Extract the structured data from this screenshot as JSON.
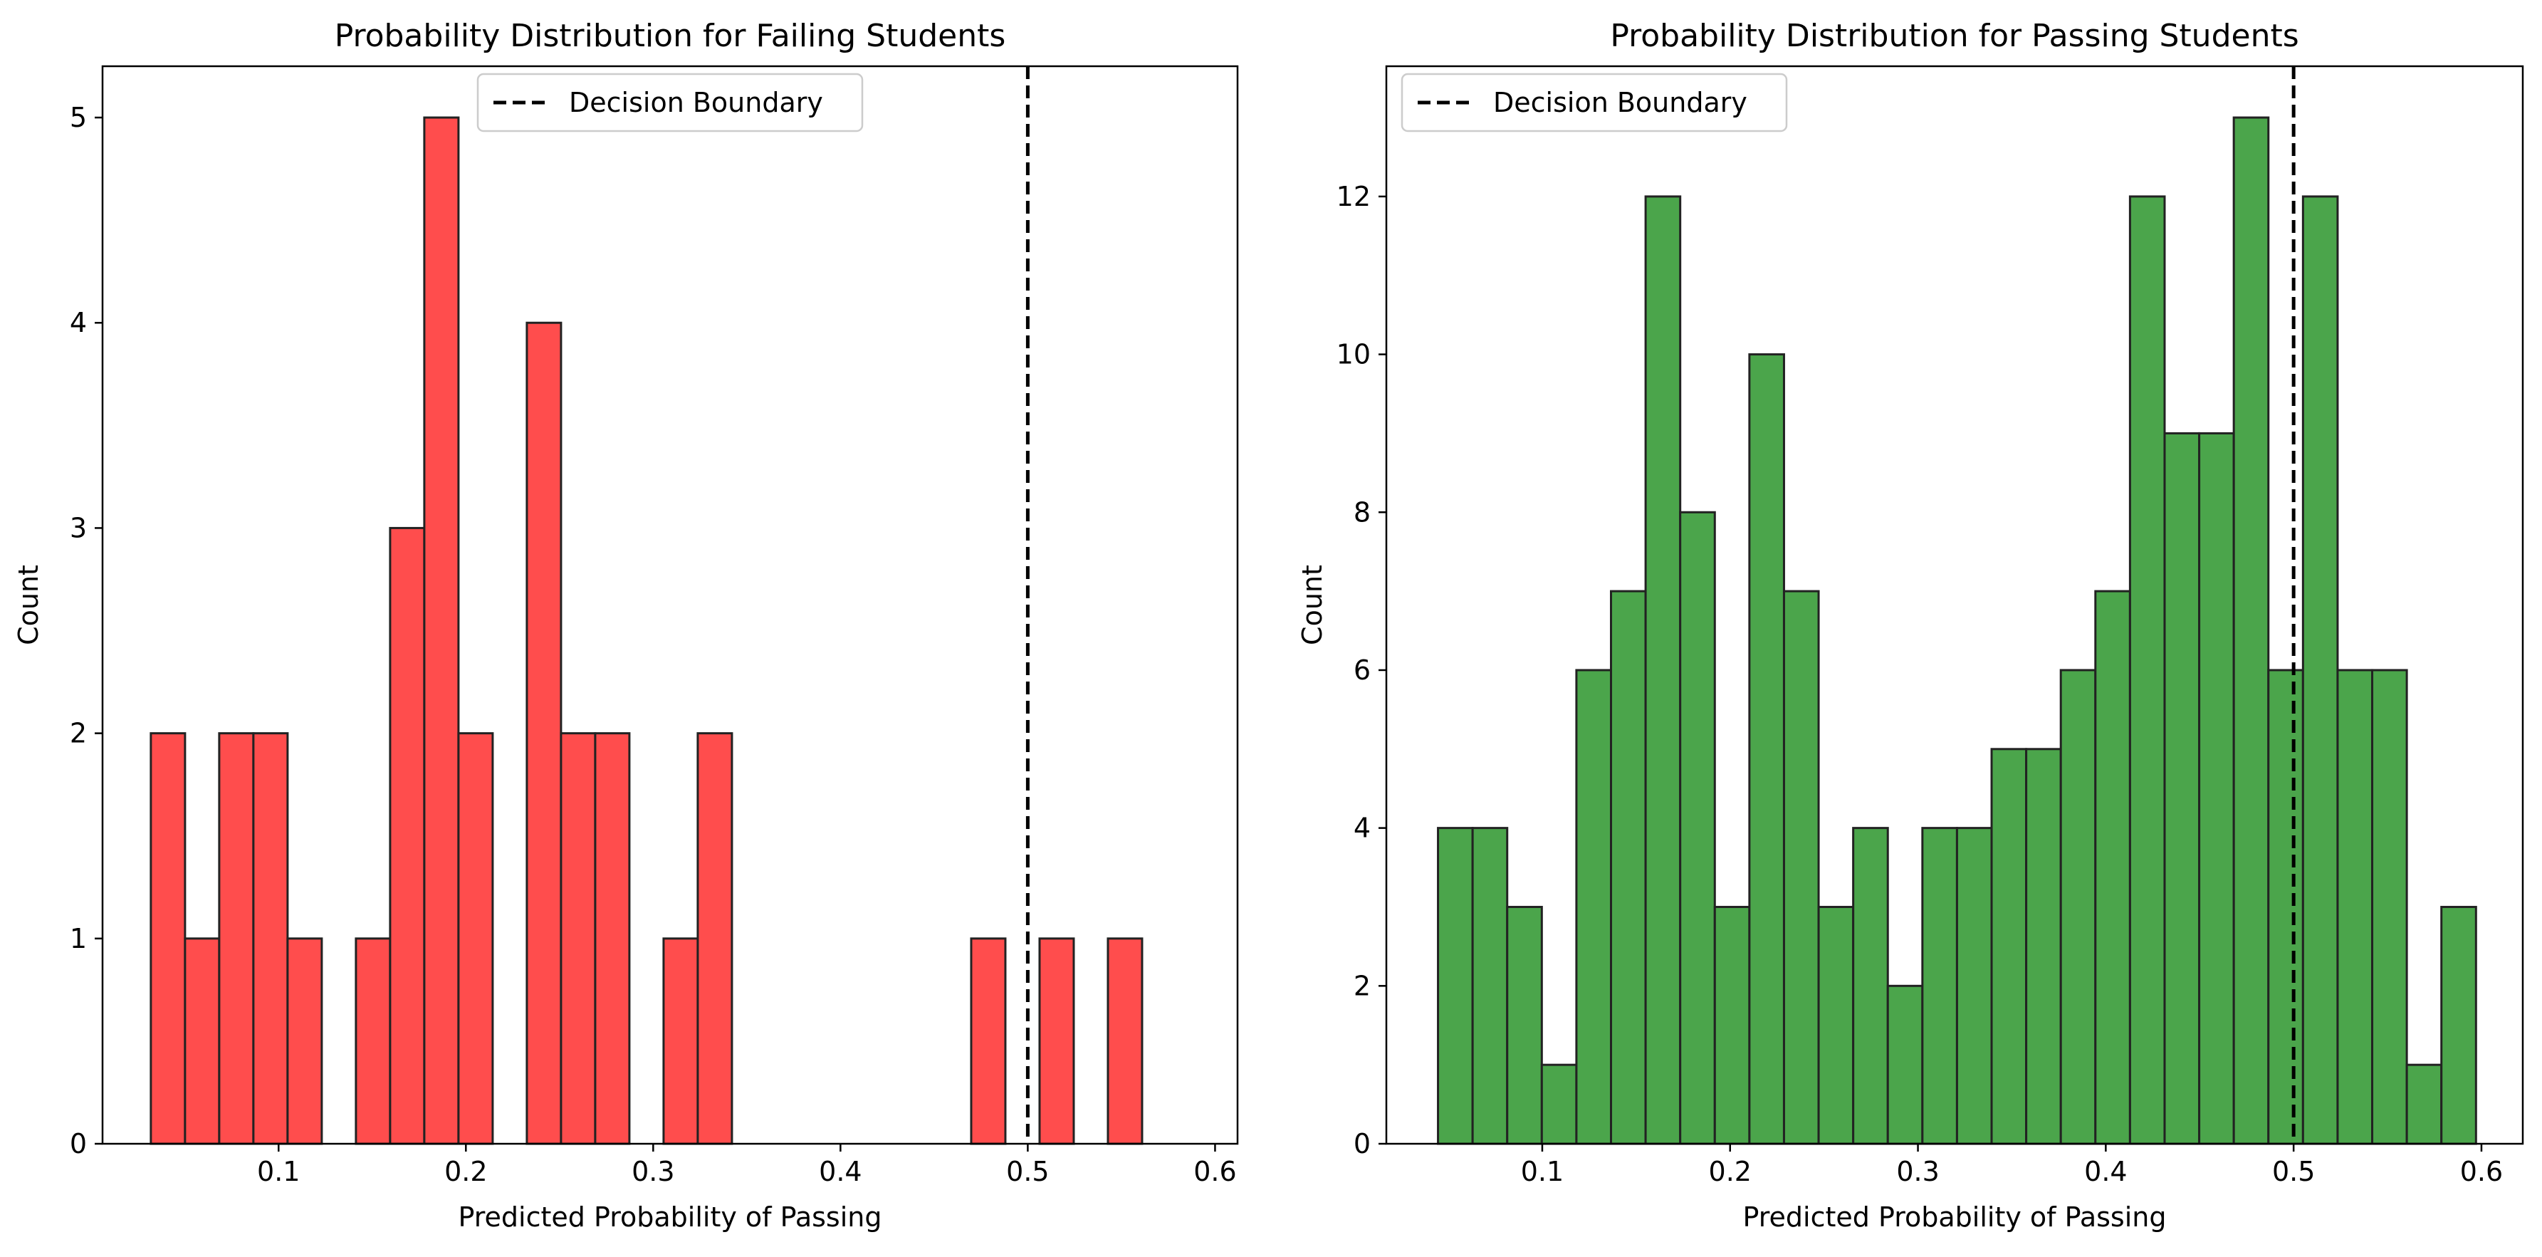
{
  "chart_data": [
    {
      "type": "bar",
      "title": "Probability Distribution for Failing Students",
      "xlabel": "Predicted Probability of Passing",
      "ylabel": "Count",
      "xlim": [
        0.006,
        0.612
      ],
      "ylim": [
        0,
        5.25
      ],
      "xticks": [
        0.1,
        0.2,
        0.3,
        0.4,
        0.5,
        0.6
      ],
      "xtick_labels": [
        "0.1",
        "0.2",
        "0.3",
        "0.4",
        "0.5",
        "0.6"
      ],
      "yticks": [
        0,
        1,
        2,
        3,
        4,
        5
      ],
      "ytick_labels": [
        "0",
        "1",
        "2",
        "3",
        "4",
        "5"
      ],
      "bin_start": 0.0318,
      "bin_width": 0.01825,
      "values": [
        2,
        1,
        2,
        2,
        1,
        0,
        1,
        3,
        5,
        2,
        0,
        4,
        2,
        2,
        0,
        1,
        2,
        0,
        0,
        0,
        0,
        0,
        0,
        0,
        1,
        0,
        1,
        0,
        1,
        0
      ],
      "bar_color": "#FF4D4D",
      "bar_edge": "#222222",
      "boundary_x": 0.5,
      "legend": {
        "label": "Decision Boundary",
        "position": "upper center"
      },
      "grid": false
    },
    {
      "type": "bar",
      "title": "Probability Distribution for Passing Students",
      "xlabel": "Predicted Probability of Passing",
      "ylabel": "Count",
      "xlim": [
        0.017,
        0.622
      ],
      "ylim": [
        0,
        13.65
      ],
      "xticks": [
        0.1,
        0.2,
        0.3,
        0.4,
        0.5,
        0.6
      ],
      "xtick_labels": [
        "0.1",
        "0.2",
        "0.3",
        "0.4",
        "0.5",
        "0.6"
      ],
      "yticks": [
        0,
        2,
        4,
        6,
        8,
        10,
        12
      ],
      "ytick_labels": [
        "0",
        "2",
        "4",
        "6",
        "8",
        "10",
        "12"
      ],
      "bin_start": 0.0445,
      "bin_width": 0.01842,
      "values": [
        4,
        4,
        3,
        1,
        6,
        7,
        12,
        8,
        3,
        10,
        7,
        3,
        4,
        2,
        4,
        4,
        5,
        5,
        6,
        7,
        12,
        9,
        9,
        13,
        6,
        12,
        6,
        6,
        1,
        3
      ],
      "bar_color": "#4BA54B",
      "bar_edge": "#222222",
      "boundary_x": 0.5,
      "legend": {
        "label": "Decision Boundary",
        "position": "upper left"
      },
      "grid": false
    }
  ]
}
